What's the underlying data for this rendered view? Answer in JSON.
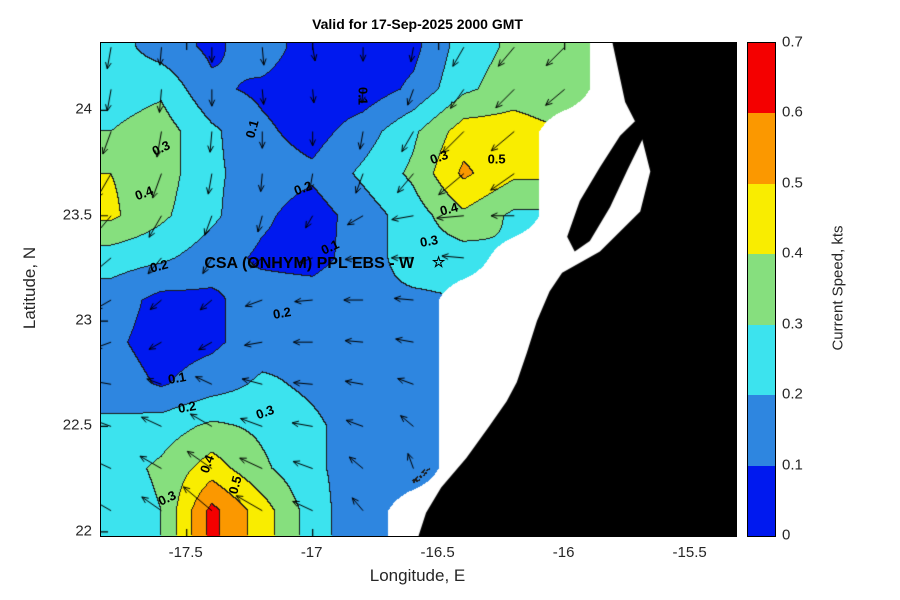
{
  "title": "Valid for 17-Sep-2025 2000 GMT",
  "axes": {
    "xlabel": "Longitude, E",
    "ylabel": "Latitude, N",
    "xticks": {
      "values": [
        -17.5,
        -17,
        -16.5,
        -16,
        -15.5
      ],
      "labels": [
        "-17.5",
        "-17",
        "-16.5",
        "-16",
        "-15.5"
      ]
    },
    "yticks": {
      "values": [
        22,
        22.5,
        23,
        23.5,
        24
      ],
      "labels": [
        "22",
        "22.5",
        "23",
        "23.5",
        "24"
      ]
    }
  },
  "colorbar": {
    "label": "Current Speed, kts",
    "min": 0,
    "max": 0.7,
    "tick_labels": [
      "0",
      "0.1",
      "0.2",
      "0.3",
      "0.4",
      "0.5",
      "0.6",
      "0.7"
    ],
    "band_colors": [
      "#0019ef",
      "#2e86e0",
      "#3ce3ee",
      "#86df7e",
      "#f9ed00",
      "#fb9800",
      "#f40000"
    ]
  },
  "chart_data": {
    "type": "contour",
    "title": "Valid for 17-Sep-2025 2000 GMT",
    "xlabel": "Longitude, E",
    "ylabel": "Latitude, N",
    "xlim": [
      -17.84,
      -15.32
    ],
    "ylim": [
      21.98,
      24.32
    ],
    "contour_levels": [
      0.1,
      0.2,
      0.3,
      0.4,
      0.5,
      0.6
    ],
    "units": "kts",
    "lon": [
      -17.8,
      -17.6,
      -17.4,
      -17.2,
      -17.0,
      -16.8,
      -16.6,
      -16.4,
      -16.2,
      -16.0,
      -15.8,
      -15.6,
      -15.4
    ],
    "lat": [
      24.3,
      24.1,
      23.9,
      23.7,
      23.5,
      23.3,
      23.1,
      22.9,
      22.7,
      22.5,
      22.3,
      22.1
    ],
    "speed": [
      [
        0.25,
        0.15,
        0.08,
        0.15,
        0.05,
        0.05,
        0.07,
        0.25,
        0.32,
        0.35,
        null,
        null,
        null
      ],
      [
        0.25,
        0.28,
        0.12,
        0.08,
        0.04,
        0.04,
        0.12,
        0.28,
        0.35,
        0.32,
        null,
        null,
        null
      ],
      [
        0.3,
        0.35,
        0.22,
        0.12,
        0.06,
        0.15,
        0.28,
        0.45,
        0.45,
        null,
        null,
        null,
        null
      ],
      [
        0.4,
        0.35,
        0.22,
        0.15,
        0.12,
        0.22,
        0.32,
        0.52,
        0.42,
        null,
        null,
        null,
        null
      ],
      [
        0.42,
        0.32,
        0.22,
        0.12,
        0.05,
        0.15,
        0.25,
        0.38,
        0.28,
        null,
        null,
        null,
        null
      ],
      [
        0.25,
        0.22,
        0.15,
        0.08,
        0.06,
        0.15,
        0.25,
        0.25,
        null,
        null,
        null,
        null,
        null
      ],
      [
        0.15,
        0.07,
        0.08,
        0.15,
        0.15,
        0.18,
        0.18,
        null,
        null,
        null,
        null,
        null,
        null
      ],
      [
        0.12,
        0.06,
        0.08,
        0.15,
        0.18,
        0.15,
        0.15,
        null,
        null,
        null,
        null,
        null,
        null
      ],
      [
        0.15,
        0.09,
        0.15,
        0.22,
        0.18,
        0.15,
        0.12,
        null,
        null,
        null,
        null,
        null,
        null
      ],
      [
        0.22,
        0.25,
        0.32,
        0.28,
        0.22,
        0.15,
        0.12,
        null,
        null,
        null,
        null,
        null,
        null
      ],
      [
        0.25,
        0.32,
        0.45,
        0.32,
        0.22,
        0.15,
        0.1,
        null,
        null,
        null,
        null,
        null,
        null
      ],
      [
        0.22,
        0.3,
        0.63,
        0.45,
        0.25,
        0.12,
        null,
        null,
        null,
        null,
        null,
        null,
        null
      ]
    ],
    "arrow_angles_deg": [
      [
        -100,
        -95,
        -90,
        -85,
        -80,
        -90,
        -100,
        -120,
        -130,
        -135,
        null,
        null,
        null
      ],
      [
        -100,
        -95,
        -90,
        -85,
        -85,
        -95,
        -110,
        -125,
        -135,
        -140,
        null,
        null,
        null
      ],
      [
        -110,
        -100,
        -95,
        -90,
        -90,
        -100,
        -120,
        -135,
        -140,
        null,
        null,
        null,
        null
      ],
      [
        -120,
        -110,
        -100,
        -95,
        -100,
        -110,
        -130,
        -140,
        -145,
        null,
        null,
        null,
        null
      ],
      [
        -130,
        -120,
        -110,
        -105,
        -120,
        -150,
        -170,
        -175,
        180,
        null,
        null,
        null,
        null
      ],
      [
        -140,
        -130,
        -120,
        -140,
        -160,
        -175,
        180,
        175,
        null,
        null,
        null,
        null,
        null
      ],
      [
        -150,
        -140,
        -140,
        -160,
        -175,
        180,
        175,
        null,
        null,
        null,
        null,
        null,
        null
      ],
      [
        -160,
        -150,
        -150,
        -170,
        180,
        175,
        170,
        null,
        null,
        null,
        null,
        null,
        null
      ],
      [
        170,
        160,
        155,
        165,
        175,
        170,
        160,
        null,
        null,
        null,
        null,
        null,
        null
      ],
      [
        160,
        155,
        150,
        160,
        170,
        160,
        140,
        null,
        null,
        null,
        null,
        null,
        null
      ],
      [
        155,
        150,
        145,
        155,
        160,
        140,
        110,
        null,
        null,
        null,
        null,
        null,
        null
      ],
      [
        150,
        145,
        140,
        150,
        155,
        130,
        null,
        null,
        null,
        null,
        null,
        null,
        null
      ]
    ],
    "contour_labels": [
      {
        "text": "0.3",
        "lon": -17.6,
        "lat": 23.82,
        "rot": -25
      },
      {
        "text": "0.4",
        "lon": -17.67,
        "lat": 23.61,
        "rot": -20
      },
      {
        "text": "0.2",
        "lon": -17.61,
        "lat": 23.26,
        "rot": -15
      },
      {
        "text": "0.1",
        "lon": -17.24,
        "lat": 23.91,
        "rot": -75
      },
      {
        "text": "0.1",
        "lon": -16.8,
        "lat": 24.07,
        "rot": 90
      },
      {
        "text": "0.2",
        "lon": -17.04,
        "lat": 23.63,
        "rot": -20
      },
      {
        "text": "0.1",
        "lon": -16.93,
        "lat": 23.35,
        "rot": -25
      },
      {
        "text": "0.3",
        "lon": -16.5,
        "lat": 23.78,
        "rot": -20
      },
      {
        "text": "0.5",
        "lon": -16.27,
        "lat": 23.77,
        "rot": 0
      },
      {
        "text": "0.4",
        "lon": -16.46,
        "lat": 23.53,
        "rot": -15
      },
      {
        "text": "0.3",
        "lon": -16.54,
        "lat": 23.38,
        "rot": -10
      },
      {
        "text": "0.2",
        "lon": -17.12,
        "lat": 23.04,
        "rot": -10
      },
      {
        "text": "0.1",
        "lon": -17.54,
        "lat": 22.73,
        "rot": -10
      },
      {
        "text": "0.2",
        "lon": -17.5,
        "lat": 22.59,
        "rot": -10
      },
      {
        "text": "0.3",
        "lon": -17.19,
        "lat": 22.57,
        "rot": -20
      },
      {
        "text": "0.4",
        "lon": -17.42,
        "lat": 22.32,
        "rot": -70
      },
      {
        "text": "0.5",
        "lon": -17.31,
        "lat": 22.22,
        "rot": -75
      },
      {
        "text": "0.3",
        "lon": -17.58,
        "lat": 22.16,
        "rot": -25
      }
    ],
    "annotation": {
      "text": "CSA (ONHYM) PPL EBS  - W",
      "lon": -17.43,
      "lat": 23.27
    },
    "star_marker": {
      "char": "☆",
      "lon": -16.5,
      "lat": 23.28
    },
    "land_color": "#000000",
    "nodata_color": "#ffffff",
    "land_polygons": [
      [
        [
          -15.81,
          24.32
        ],
        [
          -15.76,
          24.04
        ],
        [
          -15.7,
          23.9
        ],
        [
          -15.66,
          23.71
        ],
        [
          -15.7,
          23.52
        ],
        [
          -15.86,
          23.33
        ],
        [
          -16.01,
          23.23
        ],
        [
          -16.06,
          23.14
        ],
        [
          -16.11,
          23.0
        ],
        [
          -16.15,
          22.85
        ],
        [
          -16.19,
          22.71
        ],
        [
          -16.23,
          22.62
        ],
        [
          -16.3,
          22.5
        ],
        [
          -16.39,
          22.35
        ],
        [
          -16.49,
          22.21
        ],
        [
          -16.55,
          22.09
        ],
        [
          -16.58,
          21.98
        ],
        [
          -15.32,
          21.98
        ],
        [
          -15.32,
          24.32
        ]
      ],
      [
        [
          -15.99,
          23.4
        ],
        [
          -15.94,
          23.57
        ],
        [
          -15.86,
          23.73
        ],
        [
          -15.78,
          23.88
        ],
        [
          -15.72,
          23.95
        ],
        [
          -15.68,
          23.89
        ],
        [
          -15.75,
          23.72
        ],
        [
          -15.82,
          23.54
        ],
        [
          -15.9,
          23.38
        ],
        [
          -15.96,
          23.33
        ]
      ]
    ]
  }
}
